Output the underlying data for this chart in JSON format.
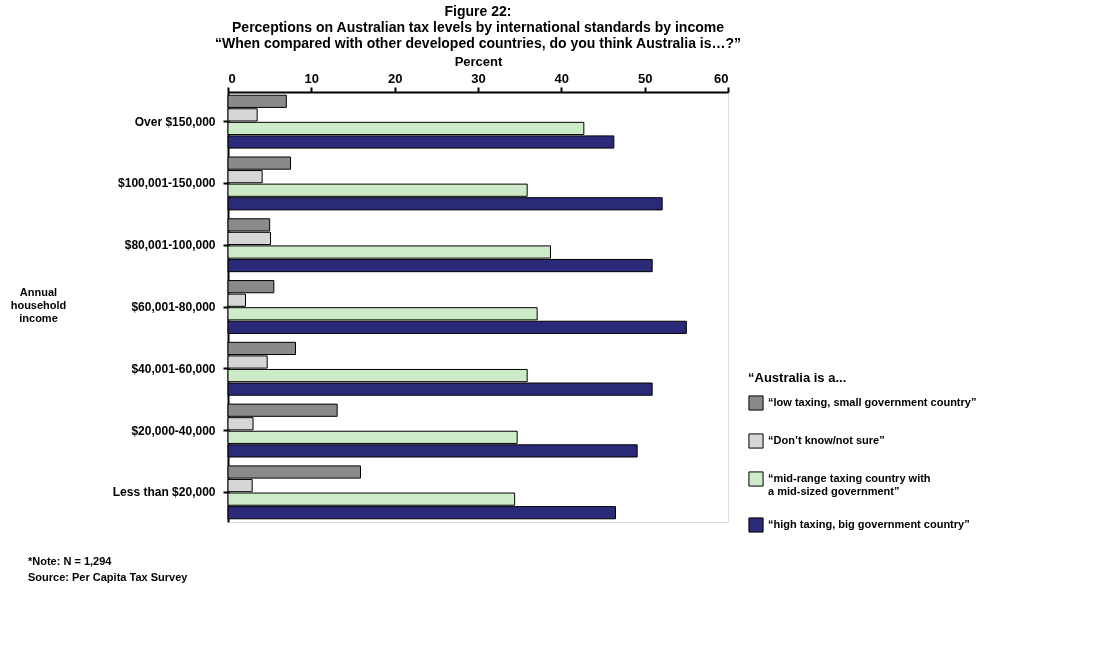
{
  "chart_data": {
    "type": "bar",
    "orientation": "horizontal",
    "title": "Figure 22:\nPerceptions on Australian tax levels by international standards by income\n“When compared with other developed countries, do you think Australia is…?”",
    "xlabel": "Percent",
    "ylabel": "Annual household income",
    "legend_title": "“Australia is a...",
    "categories": [
      "Over $150,000",
      "$100,001-150,000",
      "$80,001-100,000",
      "$60,001-80,000",
      "$40,001-60,000",
      "$20,000-40,000",
      "Less than $20,000"
    ],
    "series": [
      {
        "name": "“low taxing, small government country”",
        "color": "#8a8a8a",
        "values": [
          7.0,
          7.5,
          5.0,
          5.5,
          8.1,
          13.1,
          15.9
        ]
      },
      {
        "name": "“Don’t know/not sure”",
        "color": "#d6d6d6",
        "values": [
          3.5,
          4.1,
          5.1,
          2.1,
          4.7,
          3.0,
          2.9
        ]
      },
      {
        "name": "“mid-range taxing country with a mid-sized government”",
        "color": "#cdebc8",
        "values": [
          42.7,
          35.9,
          38.7,
          37.1,
          35.9,
          34.7,
          34.4
        ]
      },
      {
        "name": "“high taxing, big government country”",
        "color": "#2b2a78",
        "values": [
          46.3,
          52.1,
          50.9,
          55.0,
          50.9,
          49.1,
          46.5
        ]
      }
    ],
    "xlim": [
      0,
      60
    ],
    "xticks": [
      0,
      10,
      20,
      30,
      40,
      50,
      60
    ],
    "grid": false,
    "legend": "bottom right",
    "annotations": [
      "*Note: N = 1,294",
      "Source: Per Capita Tax Survey"
    ]
  }
}
